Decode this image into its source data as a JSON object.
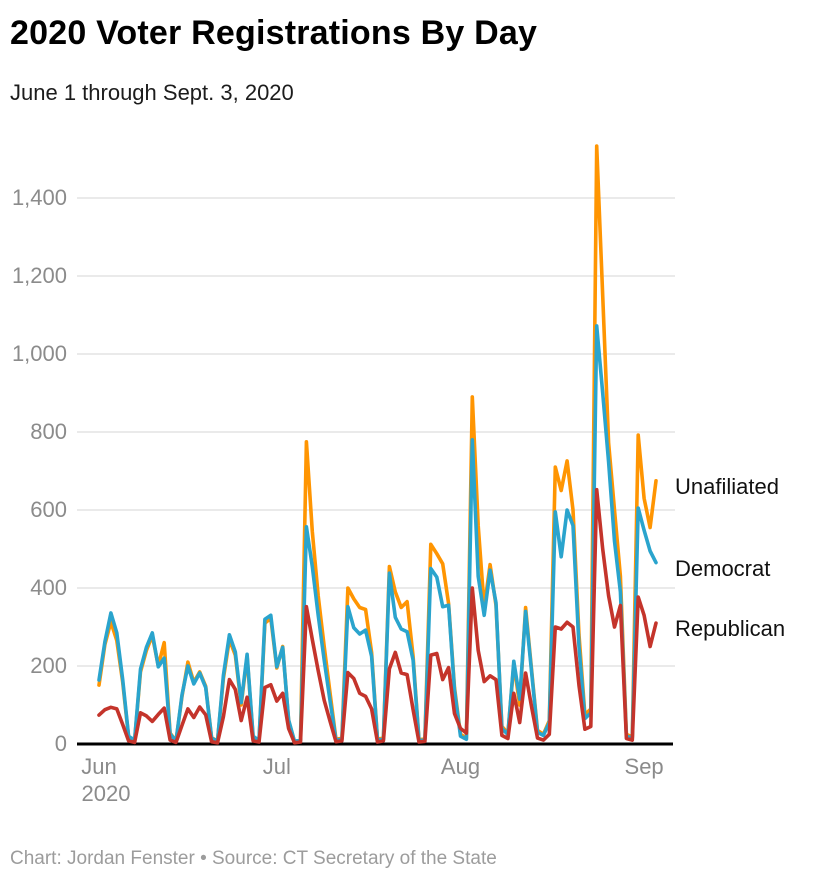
{
  "header": {
    "title": "2020 Voter Registrations By Day",
    "subtitle": "June 1 through Sept. 3, 2020"
  },
  "footer": {
    "text": "Chart: Jordan Fenster • Source: CT Secretary of the State"
  },
  "colors": {
    "unafiliated": "#ff9502",
    "democrat": "#2aa4cd",
    "republican": "#c4342b",
    "gridline": "#e4e4e4",
    "axis_line": "#000000",
    "axis_label": "#8b8b8b"
  },
  "chart_data": {
    "type": "line",
    "title": "2020 Voter Registrations By Day",
    "subtitle": "June 1 through Sept. 3, 2020",
    "x_start": "2020-06-01",
    "x_end": "2020-09-03",
    "x_interval": "day",
    "x_tick_labels": [
      "Jun",
      "Jul",
      "Aug",
      "Sep"
    ],
    "x_tick_day_index": [
      0,
      30,
      61,
      92
    ],
    "x_year_label": "2020",
    "y_ticks": [
      0,
      200,
      400,
      600,
      800,
      1000,
      1200,
      1400
    ],
    "y_tick_labels": [
      "0",
      "200",
      "400",
      "600",
      "800",
      "1,000",
      "1,200",
      "1,400"
    ],
    "ylim": [
      0,
      1550
    ],
    "grid": "horizontal",
    "legend_position": "end-of-line-labels-right",
    "series": [
      {
        "name": "Unafiliated",
        "color": "#ff9502",
        "values": [
          151,
          255,
          313,
          265,
          158,
          18,
          9,
          185,
          240,
          278,
          200,
          260,
          28,
          8,
          122,
          210,
          158,
          185,
          148,
          16,
          8,
          168,
          268,
          228,
          100,
          225,
          18,
          8,
          310,
          322,
          195,
          250,
          60,
          6,
          9,
          775,
          545,
          380,
          250,
          130,
          12,
          15,
          400,
          372,
          350,
          345,
          235,
          12,
          15,
          455,
          390,
          350,
          365,
          225,
          10,
          14,
          512,
          488,
          462,
          360,
          145,
          25,
          15,
          890,
          560,
          350,
          460,
          355,
          45,
          28,
          205,
          100,
          350,
          190,
          35,
          25,
          60,
          710,
          650,
          726,
          600,
          280,
          75,
          90,
          1533,
          1150,
          772,
          600,
          430,
          25,
          18,
          792,
          630,
          555,
          675
        ]
      },
      {
        "name": "Democrat",
        "color": "#2aa4cd",
        "values": [
          164,
          262,
          336,
          285,
          165,
          20,
          10,
          192,
          248,
          285,
          198,
          220,
          26,
          7,
          126,
          200,
          154,
          182,
          145,
          15,
          7,
          176,
          280,
          236,
          106,
          230,
          20,
          9,
          320,
          330,
          198,
          248,
          62,
          7,
          10,
          557,
          455,
          330,
          215,
          110,
          10,
          12,
          352,
          298,
          282,
          292,
          225,
          10,
          12,
          438,
          325,
          295,
          288,
          215,
          8,
          11,
          450,
          428,
          352,
          356,
          138,
          20,
          12,
          780,
          430,
          330,
          446,
          362,
          40,
          24,
          212,
          115,
          340,
          185,
          30,
          22,
          55,
          595,
          480,
          600,
          560,
          250,
          65,
          80,
          1072,
          900,
          723,
          520,
          390,
          20,
          15,
          605,
          548,
          495,
          465
        ]
      },
      {
        "name": "Republican",
        "color": "#c4342b",
        "values": [
          74,
          88,
          94,
          90,
          50,
          8,
          4,
          80,
          72,
          58,
          76,
          92,
          10,
          4,
          48,
          90,
          68,
          95,
          75,
          6,
          3,
          70,
          165,
          140,
          60,
          120,
          8,
          5,
          145,
          152,
          110,
          130,
          40,
          3,
          5,
          352,
          268,
          188,
          112,
          58,
          6,
          8,
          183,
          168,
          130,
          122,
          90,
          5,
          8,
          193,
          235,
          182,
          178,
          88,
          5,
          7,
          228,
          232,
          165,
          196,
          78,
          40,
          28,
          400,
          240,
          160,
          175,
          165,
          22,
          14,
          130,
          55,
          182,
          95,
          15,
          10,
          25,
          300,
          295,
          312,
          300,
          150,
          38,
          45,
          652,
          500,
          380,
          300,
          355,
          14,
          10,
          377,
          330,
          250,
          310
        ]
      }
    ]
  }
}
